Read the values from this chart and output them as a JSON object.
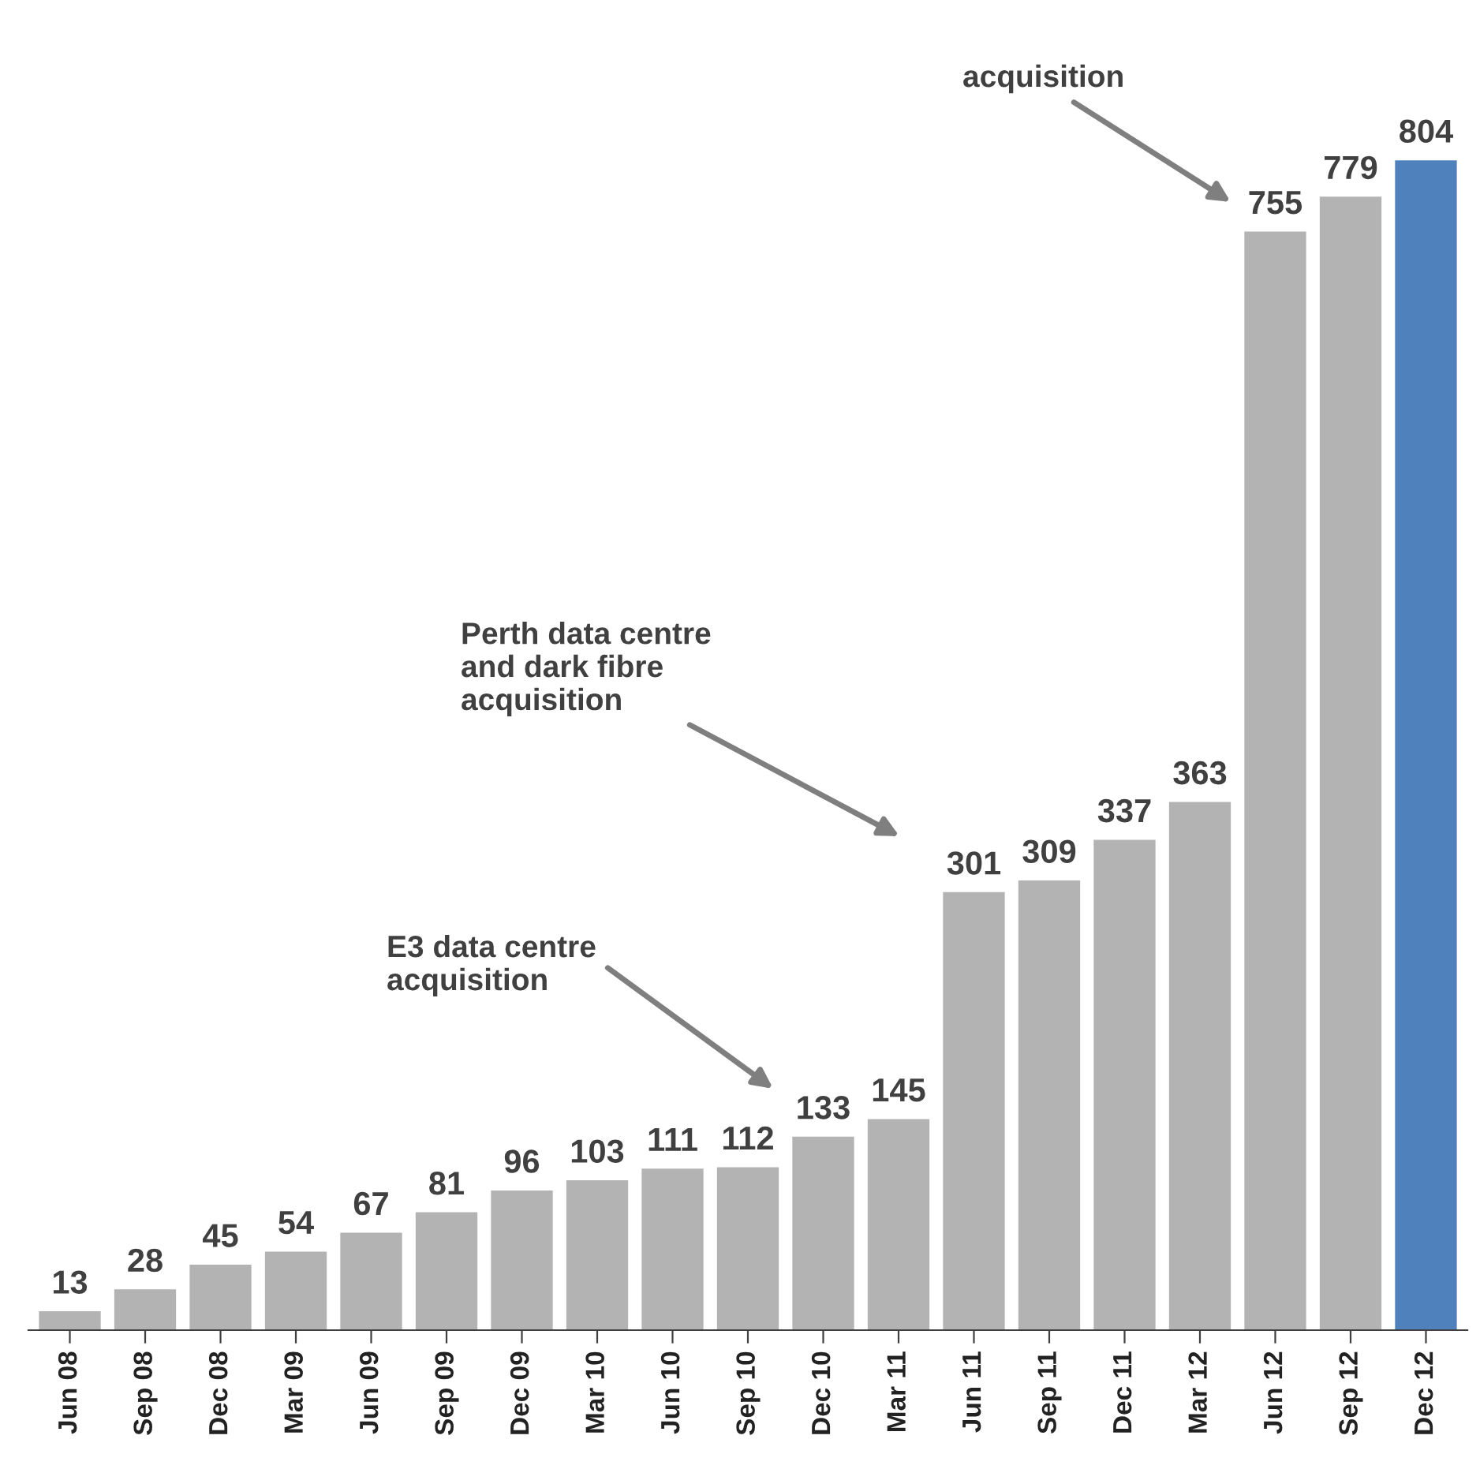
{
  "chart_data": {
    "type": "bar",
    "categories": [
      "Jun 08",
      "Sep 08",
      "Dec 08",
      "Mar 09",
      "Jun 09",
      "Sep 09",
      "Dec 09",
      "Mar 10",
      "Jun 10",
      "Sep 10",
      "Dec 10",
      "Mar 11",
      "Jun 11",
      "Sep 11",
      "Dec 11",
      "Mar 12",
      "Jun 12",
      "Sep 12",
      "Dec 12"
    ],
    "values": [
      13,
      28,
      45,
      54,
      67,
      81,
      96,
      103,
      111,
      112,
      133,
      145,
      301,
      309,
      337,
      363,
      755,
      779,
      804
    ],
    "colors": [
      "#b3b3b3",
      "#b3b3b3",
      "#b3b3b3",
      "#b3b3b3",
      "#b3b3b3",
      "#b3b3b3",
      "#b3b3b3",
      "#b3b3b3",
      "#b3b3b3",
      "#b3b3b3",
      "#b3b3b3",
      "#b3b3b3",
      "#b3b3b3",
      "#b3b3b3",
      "#b3b3b3",
      "#b3b3b3",
      "#b3b3b3",
      "#b3b3b3",
      "#4f81bd"
    ],
    "data_labels": true,
    "annotations": [
      "E3 data centre\nacquisition",
      "Perth data centre\nand dark fibre\nacquisition",
      "acquisition"
    ]
  }
}
